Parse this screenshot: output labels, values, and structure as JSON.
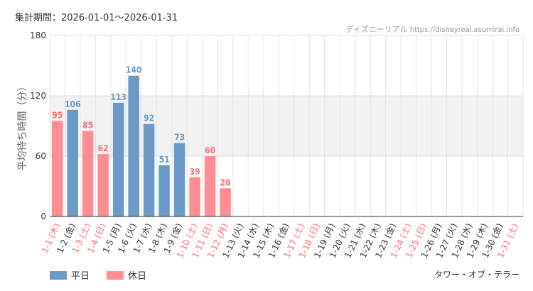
{
  "period_text": "集計期間：2026-01-01〜2026-01-31",
  "source_text": "ディズニーリアル https://disneyreal.asumirai.info",
  "attraction": "タワー・オブ・テラー",
  "colors": {
    "weekday": "#6a9ac9",
    "holiday": "#ff8d93",
    "holiday_label": "#ff6e77",
    "band": "#f2f2f2"
  },
  "legend": [
    {
      "label": "平日",
      "color": "#6a9ac9"
    },
    {
      "label": "休日",
      "color": "#ff8d93"
    }
  ],
  "chart_data": {
    "type": "bar",
    "ylabel": "平均待ち時間（分）",
    "ylim": [
      0,
      180
    ],
    "yticks": [
      0,
      60,
      120,
      180
    ],
    "grid": true,
    "legend_position": "bottom-left",
    "categories": [
      "1-1 (木)",
      "1-2 (金)",
      "1-3 (土)",
      "1-4 (日)",
      "1-5 (月)",
      "1-6 (火)",
      "1-7 (水)",
      "1-8 (木)",
      "1-9 (金)",
      "1-10 (土)",
      "1-11 (日)",
      "1-12 (月)",
      "1-13 (火)",
      "1-14 (水)",
      "1-15 (木)",
      "1-16 (金)",
      "1-17 (土)",
      "1-18 (日)",
      "1-19 (月)",
      "1-20 (火)",
      "1-21 (水)",
      "1-22 (木)",
      "1-23 (金)",
      "1-24 (土)",
      "1-25 (日)",
      "1-26 (月)",
      "1-27 (火)",
      "1-28 (水)",
      "1-29 (木)",
      "1-30 (金)",
      "1-31 (土)"
    ],
    "values": [
      95,
      106,
      85,
      62,
      113,
      140,
      92,
      51,
      73,
      39,
      60,
      28,
      null,
      null,
      null,
      null,
      null,
      null,
      null,
      null,
      null,
      null,
      null,
      null,
      null,
      null,
      null,
      null,
      null,
      null,
      null
    ],
    "is_holiday": [
      true,
      false,
      true,
      true,
      false,
      false,
      false,
      false,
      false,
      true,
      true,
      true,
      false,
      false,
      false,
      false,
      true,
      true,
      false,
      false,
      false,
      false,
      false,
      true,
      true,
      false,
      false,
      false,
      false,
      false,
      true
    ]
  }
}
